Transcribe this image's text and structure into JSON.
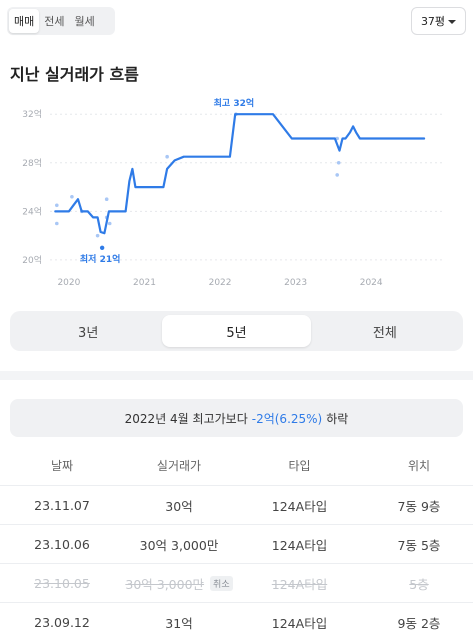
{
  "trade_tabs": [
    {
      "label": "매매",
      "active": true
    },
    {
      "label": "전세",
      "active": false
    },
    {
      "label": "월세",
      "active": false
    }
  ],
  "size_select": {
    "value": "37평",
    "icon": "caret-down-icon"
  },
  "section_title": "지난 실거래가 흐름",
  "chart_data": {
    "type": "line",
    "title": "",
    "xlabel": "",
    "ylabel": "",
    "x_ticks": [
      "2020",
      "2021",
      "2022",
      "2023",
      "2024"
    ],
    "y_ticks": [
      "20억",
      "24억",
      "28억",
      "32억"
    ],
    "ylim": [
      19.5,
      33.5
    ],
    "xlim": [
      2019.75,
      2024.95
    ],
    "grid": "horizontal-dashed",
    "line_color": "#2f7be7",
    "point_color": "#a9c7f5",
    "series": [
      {
        "x": [
          2019.82,
          2019.95,
          2020.0,
          2020.06,
          2020.12,
          2020.17,
          2020.25,
          2020.32,
          2020.38,
          2020.42,
          2020.47,
          2020.53,
          2020.61,
          2020.7,
          2020.75,
          2020.8,
          2020.84,
          2020.88,
          2021.05,
          2021.16,
          2021.25,
          2021.3,
          2021.4,
          2021.52,
          2021.6,
          2021.8,
          2022.0,
          2022.13,
          2022.2,
          2022.3,
          2022.6,
          2022.7,
          2022.95,
          2023.2,
          2023.4,
          2023.52,
          2023.58,
          2023.62,
          2023.66,
          2023.72,
          2023.76,
          2023.8,
          2023.85,
          2023.95,
          2024.1,
          2024.7
        ],
        "y": [
          24,
          24,
          24,
          24.5,
          25,
          24,
          24,
          23.5,
          23.5,
          22.3,
          22.2,
          24,
          24,
          24,
          24,
          26.5,
          27.5,
          26,
          26,
          26,
          26,
          27.5,
          28.2,
          28.5,
          28.5,
          28.5,
          28.5,
          28.5,
          32,
          32,
          32,
          32,
          30,
          30,
          30,
          30,
          29,
          30,
          30,
          30.5,
          31,
          30.5,
          30,
          30,
          30,
          30
        ]
      }
    ],
    "points": {
      "x": [
        2019.84,
        2019.84,
        2020.04,
        2020.17,
        2020.38,
        2020.44,
        2020.5,
        2020.5,
        2020.54,
        2021.3,
        2022.21,
        2023.55,
        2023.55,
        2023.57
      ],
      "y": [
        24.5,
        23.0,
        25.2,
        24.0,
        22.0,
        21.0,
        25.0,
        23.5,
        23.0,
        28.5,
        32.0,
        30.0,
        27.0,
        28.0
      ]
    },
    "annotations": [
      {
        "label": "최고 32억",
        "x": 2022.21,
        "y": 32
      },
      {
        "label": "최저 21억",
        "x": 2020.44,
        "y": 21
      }
    ]
  },
  "period_tabs": [
    {
      "label": "3년",
      "active": false
    },
    {
      "label": "5년",
      "active": true
    },
    {
      "label": "전체",
      "active": false
    }
  ],
  "summary": {
    "prefix": "2022년 4월 최고가보다",
    "change": "-2억(6.25%)",
    "suffix": "하락"
  },
  "table": {
    "headers": {
      "date": "날짜",
      "price": "실거래가",
      "type": "타입",
      "location": "위치"
    },
    "rows": [
      {
        "date": "23.11.07",
        "price": "30억",
        "type": "124A타입",
        "location": "7동 9층",
        "canceled": false
      },
      {
        "date": "23.10.06",
        "price": "30억 3,000만",
        "type": "124A타입",
        "location": "7동 5층",
        "canceled": false
      },
      {
        "date": "23.10.05",
        "price": "30억 3,000만",
        "type": "124A타입",
        "location": "5층",
        "canceled": true,
        "badge": "취소"
      },
      {
        "date": "23.09.12",
        "price": "31억",
        "type": "124A타입",
        "location": "9동 2층",
        "canceled": false
      }
    ]
  }
}
